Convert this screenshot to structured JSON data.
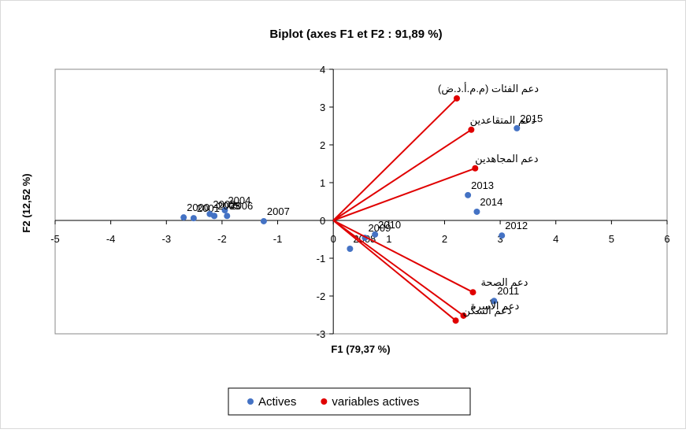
{
  "chart_data": {
    "type": "scatter",
    "title": "Biplot (axes F1 et F2 : 91,89 %)",
    "x_label": "F1 (79,37 %)",
    "y_label": "F2 (12,52 %)",
    "xlim": [
      -5,
      6
    ],
    "xticks": [
      -5,
      -4,
      -3,
      -2,
      -1,
      0,
      1,
      2,
      3,
      4,
      5,
      6
    ],
    "ylim": [
      -3,
      4
    ],
    "yticks": [
      -3,
      -2,
      -1,
      0,
      1,
      2,
      3,
      4
    ],
    "legend": "bottom",
    "series": [
      {
        "name": "Actives",
        "color": "#4472c4",
        "vectors": false,
        "x": [
          -2.69,
          -2.51,
          -2.22,
          -2.14,
          -1.95,
          -2.14,
          -1.91,
          -1.25,
          0.3,
          0.57,
          0.75,
          2.89,
          3.03,
          2.42,
          2.58,
          3.3
        ],
        "y": [
          0.08,
          0.06,
          0.17,
          0.12,
          0.27,
          0.12,
          0.12,
          -0.02,
          -0.75,
          -0.46,
          -0.37,
          -2.13,
          -0.4,
          0.67,
          0.23,
          2.44
        ],
        "labels": [
          "2000",
          "2001",
          "2002",
          "2003",
          "2004",
          "2005",
          "2006",
          "2007",
          "2008",
          "2009",
          "2010",
          "2011",
          "2012",
          "2013",
          "2014",
          "2015"
        ]
      },
      {
        "name": "variables actives",
        "color": "#e00000",
        "vectors": true,
        "x": [
          2.22,
          2.48,
          2.55,
          2.51,
          2.34,
          2.2
        ],
        "y": [
          3.23,
          2.4,
          1.38,
          -1.9,
          -2.52,
          -2.65
        ],
        "labels": [
          "دعم الفئات (م.م.أ.د.ض)",
          "دعم المتقاعدين",
          "دعم المجاهدين",
          "دعم الصحة",
          "دعم الأسرة",
          "دعم السكن"
        ]
      }
    ]
  }
}
